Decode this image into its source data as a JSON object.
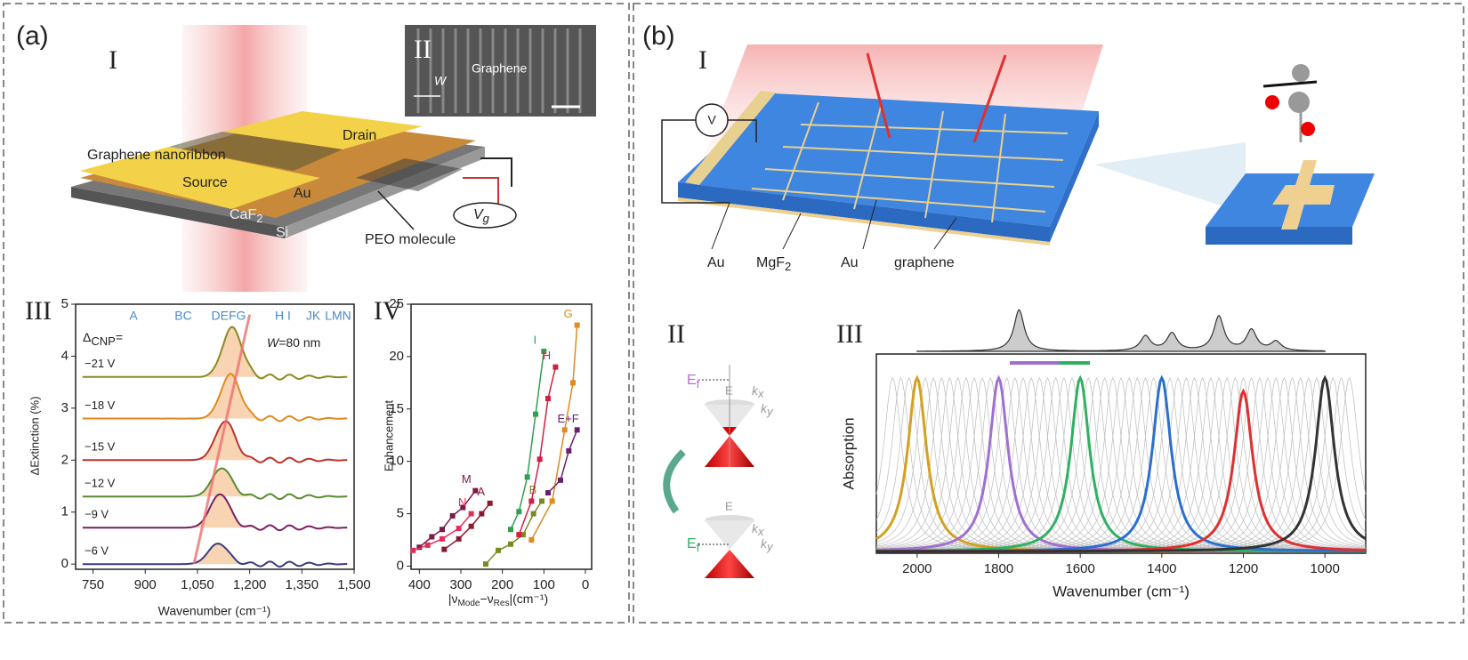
{
  "panel_a": {
    "label": "(a)",
    "device": {
      "label": "I",
      "graphene_nanoribbon": "Graphene nanoribbon",
      "drain": "Drain",
      "source": "Source",
      "au": "Au",
      "substrate": {
        "main": "CaF",
        "sub": "2"
      },
      "si": "Si",
      "molecule": "PEO molecule",
      "gate": {
        "main": "V",
        "sub": "g"
      }
    },
    "sem": {
      "label": "II",
      "width_symbol": "W",
      "graphene": "Graphene"
    },
    "spectra": {
      "label": "III",
      "ylabel": "ΔExtinction (%)",
      "xlabel": "Wavenumber (cm⁻¹)",
      "xlim": [
        700,
        1500
      ],
      "ylim": [
        -0.1,
        5
      ],
      "xticks": [
        750,
        900,
        {
          "value": 1050,
          "label": "1,050"
        },
        {
          "value": 1200,
          "label": "1,200"
        },
        {
          "value": 1350,
          "label": "1,350"
        },
        {
          "value": 1500,
          "label": "1,500"
        }
      ],
      "yticks": [
        0,
        1,
        2,
        3,
        4,
        5
      ],
      "mode_labels": [
        "A",
        "BC",
        "DEFG",
        "H I",
        "JK",
        "LMN"
      ],
      "legend_title": {
        "main": "Δ",
        "sub": "CNP",
        "tail": "="
      },
      "width_note": {
        "main": "W",
        "tail": "=80 nm"
      },
      "curves": [
        {
          "name": "−21 V",
          "baseline": 3.6,
          "peak": 0.95,
          "peak_position": 1150
        },
        {
          "name": "−18 V",
          "baseline": 2.8,
          "peak": 0.85,
          "peak_position": 1145
        },
        {
          "name": "−15 V",
          "baseline": 2.0,
          "peak": 0.75,
          "peak_position": 1130
        },
        {
          "name": "−12 V",
          "baseline": 1.3,
          "peak": 0.55,
          "peak_position": 1120
        },
        {
          "name": "−9 V",
          "baseline": 0.7,
          "peak": 0.65,
          "peak_position": 1115
        },
        {
          "name": "−6 V",
          "baseline": 0.0,
          "peak": 0.4,
          "peak_position": 1110
        }
      ]
    },
    "enhancement": {
      "label": "IV",
      "ylabel": "Enhancement",
      "xlabel": {
        "pre": "|ν",
        "sub1": "Mode",
        "mid": "−ν",
        "sub2": "Res",
        "post": "|(cm⁻¹)"
      },
      "xlim": [
        420,
        -15
      ],
      "ylim": [
        -0.3,
        25
      ],
      "xticks": [
        400,
        300,
        200,
        100,
        0
      ],
      "yticks": [
        0,
        5,
        10,
        15,
        20,
        25
      ],
      "series": [
        {
          "name": "M",
          "color": "#7a1a4a",
          "x": [
            400,
            370,
            345,
            320,
            295,
            265
          ],
          "values": [
            1.8,
            2.8,
            3.5,
            4.8,
            5.6,
            7.2
          ]
        },
        {
          "name": "N",
          "color": "#e0305a",
          "x": [
            415,
            380,
            345,
            305,
            275
          ],
          "values": [
            1.5,
            2.0,
            2.6,
            3.6,
            5.0
          ]
        },
        {
          "name": "A",
          "color": "#8a1a30",
          "x": [
            340,
            305,
            275,
            250,
            230
          ],
          "values": [
            1.6,
            2.6,
            3.8,
            5.0,
            6.0
          ]
        },
        {
          "name": "B",
          "color": "#7a8a20",
          "x": [
            240,
            210,
            180,
            150,
            125,
            105
          ],
          "values": [
            0.2,
            1.5,
            2.1,
            3.0,
            5.0,
            6.2
          ]
        },
        {
          "name": "I",
          "color": "#30a050",
          "x": [
            180,
            160,
            140,
            120,
            100
          ],
          "values": [
            3.5,
            5.2,
            8.5,
            14.5,
            20.5
          ]
        },
        {
          "name": "H",
          "color": "#d02040",
          "x": [
            160,
            130,
            110,
            90,
            72
          ],
          "values": [
            3.0,
            6.2,
            10.2,
            16.0,
            19.0
          ]
        },
        {
          "name": "G",
          "color": "#e08a20",
          "x": [
            130,
            80,
            50,
            30,
            20
          ],
          "values": [
            2.5,
            6.2,
            13.0,
            17.5,
            23.0
          ]
        },
        {
          "name": "E+F",
          "color": "#6a2070",
          "x": [
            90,
            60,
            40,
            20
          ],
          "values": [
            7.0,
            8.2,
            11.0,
            13.0
          ]
        }
      ]
    }
  },
  "panel_b": {
    "label": "(b)",
    "device": {
      "label": "I",
      "voltage": "V",
      "au_left": "Au",
      "dielectric": {
        "main": "MgF",
        "sub": "2"
      },
      "au_right": "Au",
      "graphene": "graphene"
    },
    "bands": {
      "label": "II",
      "energy_top": "E",
      "fermi_top": {
        "main": "E",
        "sub": "f"
      },
      "kx_top": {
        "main": "k",
        "sub": "x"
      },
      "ky_top": {
        "main": "k",
        "sub": "y"
      },
      "energy_bottom": "E",
      "fermi_bottom": {
        "main": "E",
        "sub": "f"
      },
      "kx_bottom": {
        "main": "k",
        "sub": "x"
      },
      "ky_bottom": {
        "main": "k",
        "sub": "y"
      }
    },
    "absorption": {
      "label": "III",
      "ylabel": "Absorption",
      "xlabel": "Wavenumber (cm⁻¹)",
      "xlim": [
        2100,
        900
      ],
      "ylim": [
        0,
        1
      ],
      "xticks": [
        2000,
        1800,
        1600,
        1400,
        1200,
        1000
      ],
      "linewidth": 28,
      "resonances": {
        "values": [
          2000,
          1800,
          1600,
          1400,
          1200,
          1000
        ],
        "heights": [
          0.92,
          0.92,
          0.92,
          0.92,
          0.85,
          0.92
        ],
        "colors": [
          "#d4a020",
          "#a070d0",
          "#30b060",
          "#2a6fd0",
          "#e03030",
          "#333333"
        ]
      },
      "background_centers": [
        2060,
        2040,
        2020,
        2000,
        1980,
        1960,
        1940,
        1920,
        1900,
        1880,
        1860,
        1840,
        1820,
        1800,
        1780,
        1760,
        1740,
        1720,
        1700,
        1680,
        1660,
        1640,
        1620,
        1600,
        1580,
        1560,
        1540,
        1520,
        1500,
        1480,
        1460,
        1440,
        1420,
        1400,
        1380,
        1360,
        1340,
        1320,
        1300,
        1280,
        1260,
        1240,
        1220,
        1200,
        1180,
        1160,
        1140,
        1120,
        1100,
        1080,
        1060,
        1040,
        1020,
        1000,
        980,
        960,
        940
      ],
      "molecule_peaks": {
        "centers": [
          1750,
          1440,
          1375,
          1260,
          1180,
          1120
        ],
        "heights": [
          0.9,
          0.32,
          0.38,
          0.75,
          0.45,
          0.2
        ]
      }
    }
  }
}
